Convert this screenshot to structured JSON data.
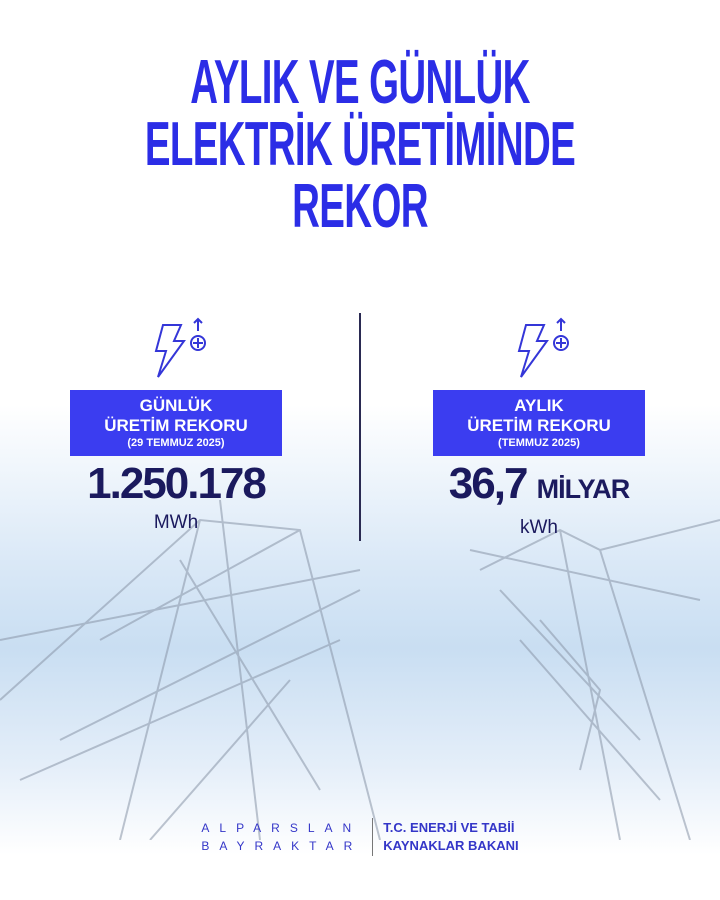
{
  "title": {
    "lines": [
      "AYLIK VE GÜNLÜK",
      "ELEKTRİK ÜRETİMİNDE",
      "REKOR"
    ]
  },
  "colors": {
    "accent": "#3b3df0",
    "title": "#2b2de6",
    "number": "#1b1a5e"
  },
  "records": [
    {
      "icon": "lightning-bolt-up-plus-icon",
      "heading1": "GÜNLÜK",
      "heading2": "ÜRETİM REKORU",
      "date": "(29 TEMMUZ 2025)",
      "value": "1.250.178",
      "suffix": "",
      "unit": "MWh"
    },
    {
      "icon": "lightning-bolt-up-plus-icon",
      "heading1": "AYLIK",
      "heading2": "ÜRETİM REKORU",
      "date": "(TEMMUZ 2025)",
      "value": "36,7",
      "suffix": "MİLYAR",
      "unit": "kWh"
    }
  ],
  "footer": {
    "name_line1": "ALPARSLAN",
    "name_line2": "BAYRAKTAR",
    "org_line1": "T.C. ENERJİ VE TABİİ",
    "org_line2": "KAYNAKLAR BAKANI"
  }
}
